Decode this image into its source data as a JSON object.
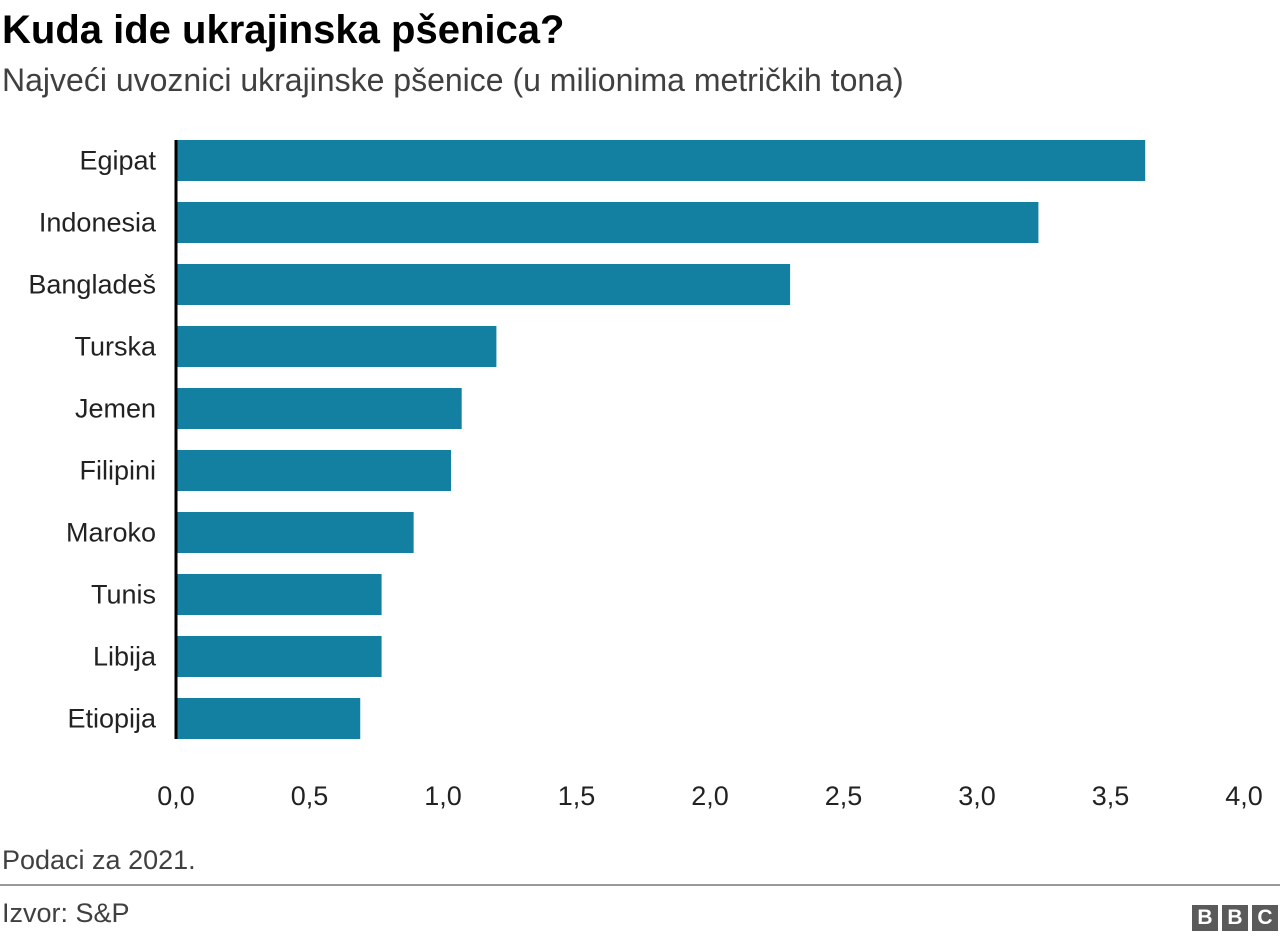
{
  "header": {
    "title": "Kuda ide ukrajinska pšenica?",
    "subtitle": "Najveći uvoznici ukrajinske pšenice (u milionima metričkih tona)"
  },
  "chart_data": {
    "type": "bar",
    "orientation": "horizontal",
    "categories": [
      "Egipat",
      "Indonesia",
      "Bangladeš",
      "Turska",
      "Jemen",
      "Filipini",
      "Maroko",
      "Tunis",
      "Libija",
      "Etiopija"
    ],
    "values": [
      3.63,
      3.23,
      2.3,
      1.2,
      1.07,
      1.03,
      0.89,
      0.77,
      0.77,
      0.69
    ],
    "xlim": [
      0,
      4
    ],
    "xticks": [
      0,
      0.5,
      1,
      1.5,
      2,
      2.5,
      3,
      3.5,
      4
    ],
    "xtick_labels": [
      "0,0",
      "0,5",
      "1,0",
      "1,5",
      "2,0",
      "2,5",
      "3,0",
      "3,5",
      "4,0"
    ],
    "bar_color": "#1380A1",
    "axis_color": "#000000",
    "grid": false
  },
  "footer": {
    "note": "Podaci za 2021.",
    "source": "Izvor: S&P",
    "logo": [
      "B",
      "B",
      "C"
    ]
  }
}
